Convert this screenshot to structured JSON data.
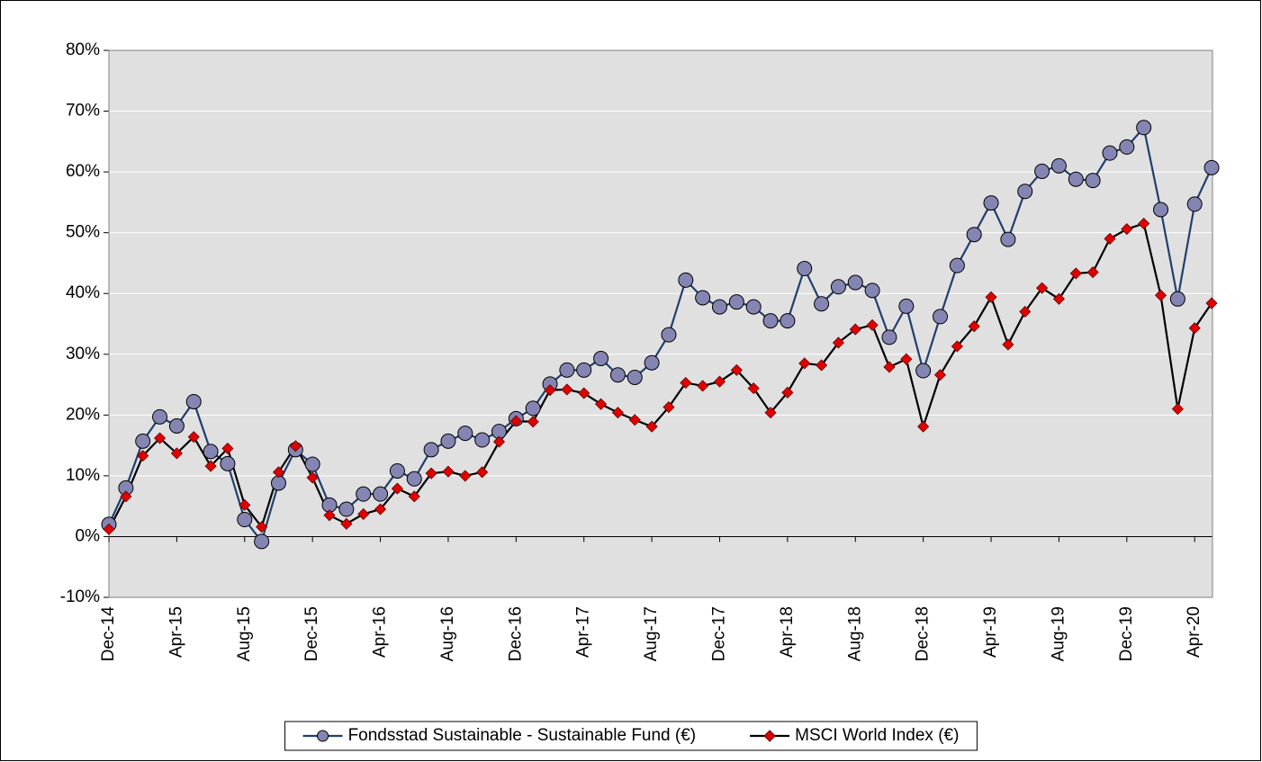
{
  "chart_data": {
    "type": "line",
    "categories": [
      "Dec-14",
      null,
      null,
      null,
      "Apr-15",
      null,
      null,
      null,
      "Aug-15",
      null,
      null,
      null,
      "Dec-15",
      null,
      null,
      null,
      "Apr-16",
      null,
      null,
      null,
      "Aug-16",
      null,
      null,
      null,
      "Dec-16",
      null,
      null,
      null,
      "Apr-17",
      null,
      null,
      null,
      "Aug-17",
      null,
      null,
      null,
      "Dec-17",
      null,
      null,
      null,
      "Apr-18",
      null,
      null,
      null,
      "Aug-18",
      null,
      null,
      null,
      "Dec-18",
      null,
      null,
      null,
      "Apr-19",
      null,
      null,
      null,
      "Aug-19",
      null,
      null,
      null,
      "Dec-19",
      null,
      null,
      null,
      "Apr-20",
      null
    ],
    "series": [
      {
        "name": "Fondsstad Sustainable - Sustainable Fund (€)",
        "color": "#1f3f6e",
        "marker": "circle",
        "marker_color": "#8585b3",
        "values": [
          2,
          8,
          15.7,
          19.7,
          18.2,
          22.2,
          14,
          12,
          2.8,
          -0.8,
          8.8,
          14.3,
          11.9,
          5.2,
          4.5,
          7,
          7,
          10.8,
          9.5,
          14.3,
          15.7,
          17,
          15.9,
          17.3,
          19.4,
          21.1,
          25.1,
          27.4,
          27.4,
          29.3,
          26.6,
          26.2,
          28.6,
          33.2,
          42.2,
          39.3,
          37.8,
          38.6,
          37.8,
          35.5,
          35.5,
          44.1,
          38.3,
          41.1,
          41.8,
          40.5,
          32.8,
          37.9,
          27.3,
          36.2,
          44.6,
          49.7,
          54.9,
          48.9,
          56.8,
          60.1,
          61,
          58.8,
          58.6,
          63.1,
          64.1,
          67.3,
          53.8,
          39.1,
          54.7,
          60.7
        ]
      },
      {
        "name": "MSCI World Index (€)",
        "color": "#000000",
        "marker": "diamond",
        "marker_color": "#e00000",
        "values": [
          1.2,
          6.6,
          13.3,
          16.2,
          13.7,
          16.4,
          11.6,
          14.5,
          5.2,
          1.6,
          10.6,
          14.9,
          9.7,
          3.5,
          2.1,
          3.7,
          4.5,
          7.9,
          6.6,
          10.4,
          10.7,
          10,
          10.6,
          15.6,
          19,
          18.9,
          24.1,
          24.2,
          23.6,
          21.8,
          20.4,
          19.2,
          18.1,
          21.3,
          25.3,
          24.8,
          25.5,
          27.4,
          24.4,
          20.4,
          23.7,
          28.5,
          28.2,
          31.9,
          34.1,
          34.8,
          27.9,
          29.2,
          18.1,
          26.6,
          31.3,
          34.6,
          39.4,
          31.6,
          37,
          40.9,
          39.1,
          43.3,
          43.5,
          49,
          50.6,
          51.5,
          39.7,
          21,
          34.3,
          38.4
        ]
      }
    ],
    "ylim": [
      -10,
      80
    ],
    "yticks": [
      {
        "value": -10,
        "label": "-10%"
      },
      {
        "value": 0,
        "label": "0%"
      },
      {
        "value": 10,
        "label": "10%"
      },
      {
        "value": 20,
        "label": "20%"
      },
      {
        "value": 30,
        "label": "30%"
      },
      {
        "value": 40,
        "label": "40%"
      },
      {
        "value": 50,
        "label": "50%"
      },
      {
        "value": 60,
        "label": "60%"
      },
      {
        "value": 70,
        "label": "70%"
      },
      {
        "value": 80,
        "label": "80%"
      }
    ],
    "grid": true,
    "plot_background": "#e0e0e0",
    "legend": "bottom"
  }
}
